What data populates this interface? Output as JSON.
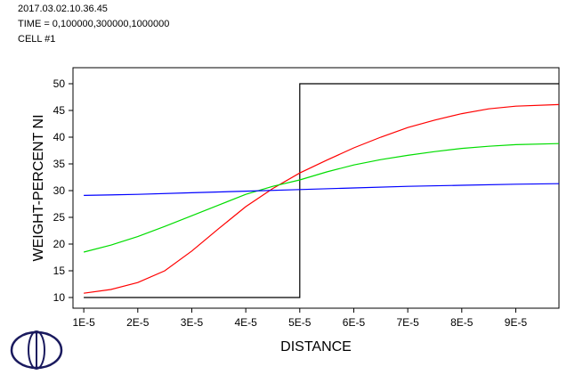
{
  "header": {
    "date": "2017.03.02.10.36.45",
    "time_line": "TIME = 0,100000,300000,1000000",
    "cell": "CELL #1"
  },
  "chart_data": {
    "type": "line",
    "xlabel": "DISTANCE",
    "ylabel": "WEIGHT-PERCENT NI",
    "xlim": [
      8e-06,
      9.8e-05
    ],
    "ylim": [
      8,
      53
    ],
    "x_ticks": [
      1e-05,
      2e-05,
      3e-05,
      4e-05,
      5e-05,
      6e-05,
      7e-05,
      8e-05,
      9e-05
    ],
    "x_tick_labels": [
      "1E-5",
      "2E-5",
      "3E-5",
      "4E-5",
      "5E-5",
      "6E-5",
      "7E-5",
      "8E-5",
      "9E-5"
    ],
    "y_ticks": [
      10,
      15,
      20,
      25,
      30,
      35,
      40,
      45,
      50
    ],
    "y_tick_labels": [
      "10",
      "15",
      "20",
      "25",
      "30",
      "35",
      "40",
      "45",
      "50"
    ],
    "series": [
      {
        "color": "#000000",
        "x": [
          1e-05,
          5e-05,
          5e-05,
          9.8e-05
        ],
        "y": [
          10,
          10,
          50,
          50
        ]
      },
      {
        "color": "#ff0000",
        "x": [
          1e-05,
          1.5e-05,
          2e-05,
          2.5e-05,
          3e-05,
          3.5e-05,
          4e-05,
          4.5e-05,
          5e-05,
          5.5e-05,
          6e-05,
          6.5e-05,
          7e-05,
          7.5e-05,
          8e-05,
          8.5e-05,
          9e-05,
          9.8e-05
        ],
        "y": [
          10.8,
          11.5,
          12.8,
          15.0,
          18.7,
          22.9,
          27.0,
          30.4,
          33.3,
          35.7,
          38.0,
          40.0,
          41.8,
          43.2,
          44.4,
          45.3,
          45.8,
          46.1
        ]
      },
      {
        "color": "#00dd00",
        "x": [
          1e-05,
          1.5e-05,
          2e-05,
          2.5e-05,
          3e-05,
          3.5e-05,
          4e-05,
          4.5e-05,
          5e-05,
          5.5e-05,
          6e-05,
          6.5e-05,
          7e-05,
          7.5e-05,
          8e-05,
          8.5e-05,
          9e-05,
          9.8e-05
        ],
        "y": [
          18.5,
          19.8,
          21.4,
          23.3,
          25.3,
          27.3,
          29.3,
          30.8,
          32.0,
          33.5,
          34.8,
          35.8,
          36.6,
          37.3,
          37.9,
          38.3,
          38.6,
          38.8
        ]
      },
      {
        "color": "#0000ff",
        "x": [
          1e-05,
          2e-05,
          3e-05,
          4e-05,
          5e-05,
          6e-05,
          7e-05,
          8e-05,
          9e-05,
          9.8e-05
        ],
        "y": [
          29.1,
          29.3,
          29.6,
          29.9,
          30.2,
          30.5,
          30.8,
          31.0,
          31.2,
          31.3
        ]
      }
    ]
  }
}
